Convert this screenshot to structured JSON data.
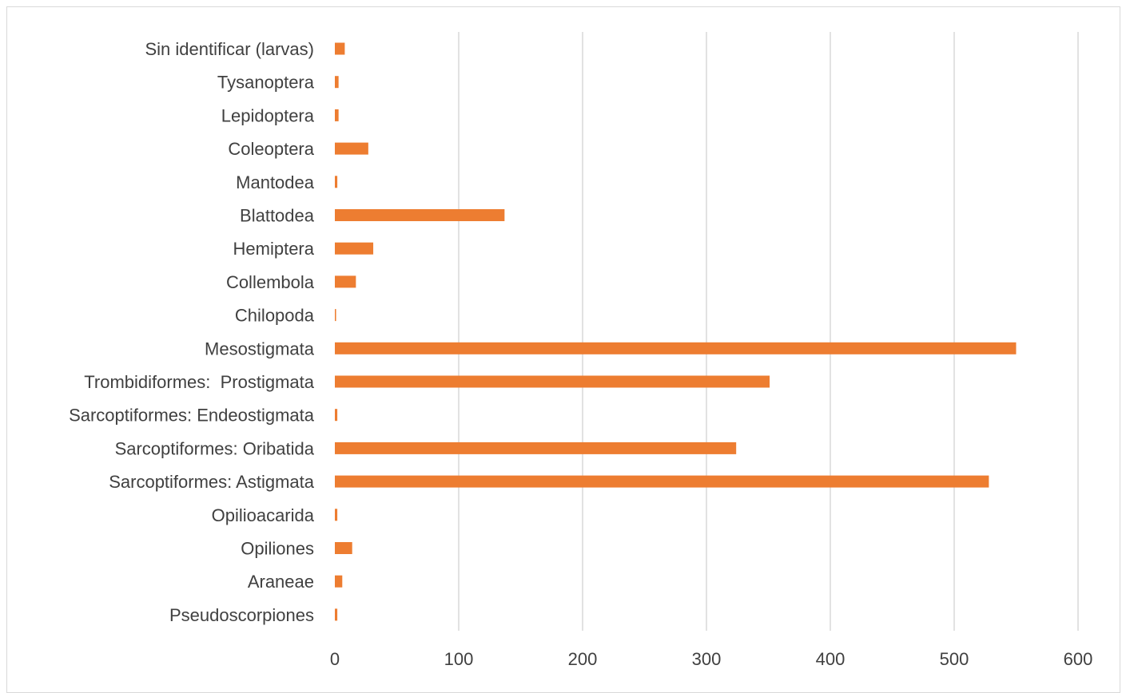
{
  "chart_data": {
    "type": "bar",
    "orientation": "horizontal",
    "title": "",
    "xlabel": "",
    "ylabel": "",
    "categories": [
      "Sin identificar (larvas)",
      "Tysanoptera",
      "Lepidoptera",
      "Coleoptera",
      "Mantodea",
      "Blattodea",
      "Hemiptera",
      "Collembola",
      "Chilopoda",
      "Mesostigmata",
      "Trombidiformes:  Prostigmata",
      "Sarcoptiformes: Endeostigmata",
      "Sarcoptiformes: Oribatida",
      "Sarcoptiformes: Astigmata",
      "Opilioacarida",
      "Opiliones",
      "Araneae",
      "Pseudoscorpiones"
    ],
    "values": [
      8,
      3,
      3,
      27,
      2,
      137,
      31,
      17,
      1,
      550,
      351,
      2,
      324,
      528,
      2,
      14,
      6,
      2
    ],
    "xlim": [
      0,
      600
    ],
    "xticks": [
      "0",
      "100",
      "200",
      "300",
      "400",
      "500",
      "600"
    ],
    "grid": true,
    "legend": "none",
    "colors": {
      "bar": "#ED7D31",
      "grid": "#D9D9D9",
      "text": "#404040"
    }
  }
}
